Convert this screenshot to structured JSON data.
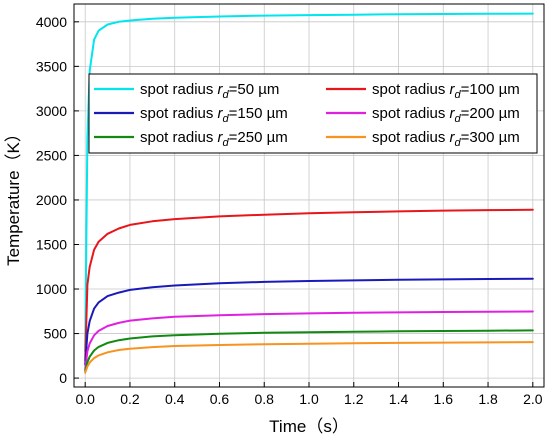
{
  "chart_data": {
    "type": "line",
    "xlabel": "Time（s）",
    "ylabel": "Temperature（K）",
    "xlim": [
      -0.05,
      2.05
    ],
    "ylim": [
      -100,
      4200
    ],
    "x_ticks": [
      0.0,
      0.2,
      0.4,
      0.6,
      0.8,
      1.0,
      1.2,
      1.4,
      1.6,
      1.8,
      2.0
    ],
    "x_tick_labels": [
      "0.0",
      "0.2",
      "0.4",
      "0.6",
      "0.8",
      "1.0",
      "1.2",
      "1.4",
      "1.6",
      "1.8",
      "2.0"
    ],
    "y_ticks": [
      0,
      500,
      1000,
      1500,
      2000,
      2500,
      3000,
      3500,
      4000
    ],
    "y_tick_labels": [
      "0",
      "500",
      "1000",
      "1500",
      "2000",
      "2500",
      "3000",
      "3500",
      "4000"
    ],
    "grid": true,
    "legend_position": "upper-center",
    "x": [
      0.0,
      0.01,
      0.02,
      0.04,
      0.06,
      0.1,
      0.15,
      0.2,
      0.3,
      0.4,
      0.6,
      0.8,
      1.0,
      1.2,
      1.4,
      1.6,
      1.8,
      2.0
    ],
    "series": [
      {
        "name_prefix": "spot radius ",
        "name_var": "r",
        "name_sub": "d",
        "name_suffix": "=50 µm",
        "color": "#00e5ee",
        "values": [
          300,
          2700,
          3450,
          3800,
          3900,
          3970,
          4000,
          4015,
          4035,
          4045,
          4060,
          4070,
          4075,
          4080,
          4085,
          4088,
          4090,
          4092
        ]
      },
      {
        "name_prefix": "spot radius ",
        "name_var": "r",
        "name_sub": "d",
        "name_suffix": "=100 µm",
        "color": "#e8161b",
        "values": [
          200,
          1050,
          1250,
          1440,
          1530,
          1620,
          1680,
          1720,
          1760,
          1785,
          1815,
          1835,
          1850,
          1862,
          1872,
          1880,
          1886,
          1890
        ]
      },
      {
        "name_prefix": "spot radius ",
        "name_var": "r",
        "name_sub": "d",
        "name_suffix": "=150 µm",
        "color": "#1a1ab8",
        "values": [
          150,
          500,
          640,
          780,
          850,
          920,
          960,
          990,
          1020,
          1040,
          1065,
          1080,
          1090,
          1097,
          1103,
          1108,
          1112,
          1115
        ]
      },
      {
        "name_prefix": "spot radius ",
        "name_var": "r",
        "name_sub": "d",
        "name_suffix": "=200 µm",
        "color": "#e020e0",
        "values": [
          100,
          300,
          390,
          480,
          530,
          585,
          620,
          645,
          670,
          688,
          705,
          718,
          726,
          733,
          738,
          742,
          745,
          748
        ]
      },
      {
        "name_prefix": "spot radius ",
        "name_var": "r",
        "name_sub": "d",
        "name_suffix": "=250 µm",
        "color": "#128a12",
        "values": [
          80,
          180,
          240,
          310,
          350,
          395,
          425,
          445,
          468,
          482,
          498,
          508,
          515,
          521,
          525,
          529,
          532,
          535
        ]
      },
      {
        "name_prefix": "spot radius ",
        "name_var": "r",
        "name_sub": "d",
        "name_suffix": "=300 µm",
        "color": "#f7931e",
        "values": [
          60,
          130,
          175,
          225,
          255,
          290,
          315,
          330,
          348,
          360,
          372,
          380,
          386,
          391,
          395,
          398,
          401,
          404
        ]
      }
    ]
  }
}
